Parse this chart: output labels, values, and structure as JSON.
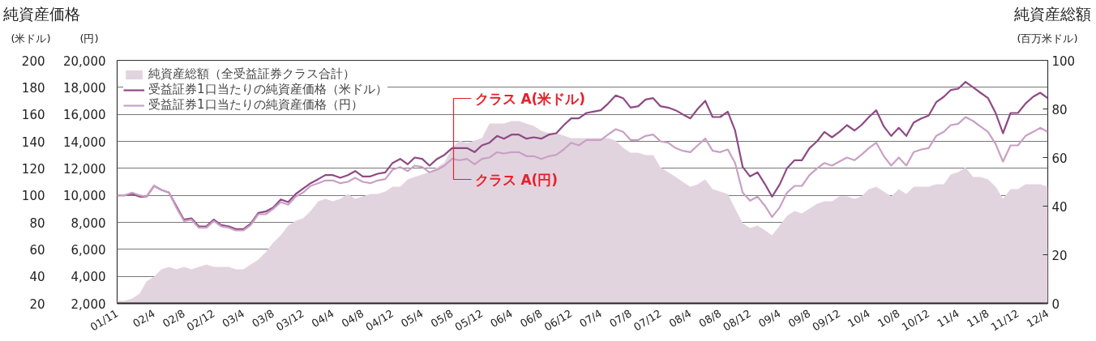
{
  "chart_data": {
    "type": "line",
    "title": "純資産価格",
    "ylabel": "(米ドル)",
    "y2label": "(円)",
    "y3label": "(百万米ドル)",
    "annotations": [
      "純資産総額",
      "クラス A(米ドル)",
      "クラス A(円)"
    ],
    "x": [
      "2001-11",
      "2001-12",
      "2002-01",
      "2002-02",
      "2002-03",
      "2002-04",
      "2002-05",
      "2002-06",
      "2002-07",
      "2002-08",
      "2002-09",
      "2002-10",
      "2002-11",
      "2002-12",
      "2003-01",
      "2003-02",
      "2003-03",
      "2003-04",
      "2003-05",
      "2003-06",
      "2003-07",
      "2003-08",
      "2003-09",
      "2003-10",
      "2003-11",
      "2003-12",
      "2004-01",
      "2004-02",
      "2004-03",
      "2004-04",
      "2004-05",
      "2004-06",
      "2004-07",
      "2004-08",
      "2004-09",
      "2004-10",
      "2004-11",
      "2004-12",
      "2005-01",
      "2005-02",
      "2005-03",
      "2005-04",
      "2005-05",
      "2005-06",
      "2005-07",
      "2005-08",
      "2005-09",
      "2005-10",
      "2005-11",
      "2005-12",
      "2006-01",
      "2006-02",
      "2006-03",
      "2006-04",
      "2006-05",
      "2006-06",
      "2006-07",
      "2006-08",
      "2006-09",
      "2006-10",
      "2006-11",
      "2006-12",
      "2007-01",
      "2007-02",
      "2007-03",
      "2007-04",
      "2007-05",
      "2007-06",
      "2007-07",
      "2007-08",
      "2007-09",
      "2007-10",
      "2007-11",
      "2007-12",
      "2008-01",
      "2008-02",
      "2008-03",
      "2008-04",
      "2008-05",
      "2008-06",
      "2008-07",
      "2008-08",
      "2008-09",
      "2008-10",
      "2008-11",
      "2008-12",
      "2009-01",
      "2009-02",
      "2009-03",
      "2009-04",
      "2009-05",
      "2009-06",
      "2009-07",
      "2009-08",
      "2009-09",
      "2009-10",
      "2009-11",
      "2009-12",
      "2010-01",
      "2010-02",
      "2010-03",
      "2010-04",
      "2010-05",
      "2010-06",
      "2010-07",
      "2010-08",
      "2010-09",
      "2010-10",
      "2010-11",
      "2010-12",
      "2011-01",
      "2011-02",
      "2011-03",
      "2011-04",
      "2011-05",
      "2011-06",
      "2011-07",
      "2011-08",
      "2011-09",
      "2011-10",
      "2011-11",
      "2011-12",
      "2012-01",
      "2012-02",
      "2012-03",
      "2012-04"
    ],
    "xlim": [
      "2001-11",
      "2012-04"
    ],
    "xticks": [
      {
        "value": "2001-11",
        "label": "01/11"
      },
      {
        "value": "2002-04",
        "label": "02/4"
      },
      {
        "value": "2002-08",
        "label": "02/8"
      },
      {
        "value": "2002-12",
        "label": "02/12"
      },
      {
        "value": "2003-04",
        "label": "03/4"
      },
      {
        "value": "2003-08",
        "label": "03/8"
      },
      {
        "value": "2003-12",
        "label": "03/12"
      },
      {
        "value": "2004-04",
        "label": "04/4"
      },
      {
        "value": "2004-08",
        "label": "04/8"
      },
      {
        "value": "2004-12",
        "label": "04/12"
      },
      {
        "value": "2005-04",
        "label": "05/4"
      },
      {
        "value": "2005-08",
        "label": "05/8"
      },
      {
        "value": "2005-12",
        "label": "05/12"
      },
      {
        "value": "2006-04",
        "label": "06/4"
      },
      {
        "value": "2006-08",
        "label": "06/8"
      },
      {
        "value": "2006-12",
        "label": "06/12"
      },
      {
        "value": "2007-04",
        "label": "07/4"
      },
      {
        "value": "2007-08",
        "label": "07/8"
      },
      {
        "value": "2007-12",
        "label": "07/12"
      },
      {
        "value": "2008-04",
        "label": "08/4"
      },
      {
        "value": "2008-08",
        "label": "08/8"
      },
      {
        "value": "2008-12",
        "label": "08/12"
      },
      {
        "value": "2009-04",
        "label": "09/4"
      },
      {
        "value": "2009-08",
        "label": "09/8"
      },
      {
        "value": "2009-12",
        "label": "09/12"
      },
      {
        "value": "2010-04",
        "label": "10/4"
      },
      {
        "value": "2010-08",
        "label": "10/8"
      },
      {
        "value": "2010-12",
        "label": "10/12"
      },
      {
        "value": "2011-04",
        "label": "11/4"
      },
      {
        "value": "2011-08",
        "label": "11/8"
      },
      {
        "value": "2011-12",
        "label": "11/12"
      },
      {
        "value": "2012-04",
        "label": "12/4"
      }
    ],
    "ylim": [
      20,
      200
    ],
    "yticks": [
      20,
      40,
      60,
      80,
      100,
      120,
      140,
      160,
      180,
      200
    ],
    "y2lim": [
      2000,
      20000
    ],
    "y2ticks": [
      {
        "value": 2000,
        "label": "2,000"
      },
      {
        "value": 4000,
        "label": "4,000"
      },
      {
        "value": 6000,
        "label": "6,000"
      },
      {
        "value": 8000,
        "label": "8,000"
      },
      {
        "value": 10000,
        "label": "10,000"
      },
      {
        "value": 12000,
        "label": "12,000"
      },
      {
        "value": 14000,
        "label": "14,000"
      },
      {
        "value": 16000,
        "label": "16,000"
      },
      {
        "value": 18000,
        "label": "18,000"
      },
      {
        "value": 20000,
        "label": "20,000"
      }
    ],
    "y3lim": [
      0,
      100
    ],
    "y3ticks": [
      0,
      20,
      40,
      60,
      80,
      100
    ],
    "grid": "y",
    "legend": "top left",
    "series": [
      {
        "name": "純資産総額（全受益証券クラス合計）",
        "type": "area",
        "axis": "y3",
        "color": "#e2d4df",
        "values": [
          1,
          1,
          2,
          4,
          9,
          11,
          14,
          15,
          14,
          15,
          14,
          15,
          16,
          15,
          15,
          15,
          14,
          14,
          16,
          18,
          21,
          25,
          28,
          32,
          34,
          35,
          38,
          42,
          43,
          42,
          43,
          45,
          43,
          44,
          45,
          45,
          46,
          48,
          48,
          51,
          52,
          53,
          54,
          56,
          58,
          64,
          67,
          66,
          67,
          68,
          74,
          74,
          74,
          75,
          75,
          74,
          73,
          71,
          70,
          70,
          69,
          68,
          68,
          68,
          68,
          68,
          68,
          67,
          64,
          62,
          62,
          61,
          61,
          56,
          54,
          52,
          50,
          48,
          49,
          51,
          47,
          46,
          45,
          39,
          33,
          31,
          32,
          30,
          28,
          32,
          36,
          38,
          37,
          39,
          41,
          42,
          42,
          44,
          44,
          43,
          44,
          47,
          48,
          46,
          44,
          47,
          45,
          48,
          48,
          48,
          49,
          49,
          53,
          54,
          56,
          52,
          52,
          51,
          48,
          43,
          47,
          47,
          49,
          49,
          49,
          48
        ]
      },
      {
        "name": "受益証券1口当たりの純資産価格（米ドル）",
        "axis": "y",
        "color": "#8e4a85",
        "values": [
          100,
          100,
          101,
          99,
          99,
          107,
          104,
          102,
          92,
          82,
          83,
          77,
          77,
          82,
          78,
          77,
          75,
          75,
          79,
          87,
          88,
          91,
          97,
          95,
          101,
          105,
          109,
          112,
          115,
          115,
          113,
          115,
          118,
          114,
          114,
          116,
          117,
          124,
          127,
          123,
          128,
          127,
          122,
          127,
          130,
          135,
          135,
          135,
          132,
          137,
          139,
          144,
          142,
          145,
          145,
          142,
          143,
          142,
          145,
          146,
          152,
          157,
          157,
          161,
          162,
          163,
          168,
          174,
          172,
          165,
          166,
          171,
          172,
          166,
          165,
          163,
          160,
          157,
          164,
          170,
          158,
          158,
          162,
          148,
          121,
          114,
          117,
          108,
          99,
          108,
          120,
          126,
          126,
          135,
          140,
          147,
          143,
          147,
          152,
          148,
          152,
          158,
          163,
          151,
          144,
          150,
          144,
          154,
          157,
          159,
          169,
          173,
          178,
          179,
          184,
          180,
          176,
          172,
          161,
          146,
          161,
          161,
          168,
          173,
          176,
          172
        ]
      },
      {
        "name": "受益証券1口当たりの純資産価格（円）",
        "axis": "y2",
        "color": "#c9a0c4",
        "values": [
          10000,
          10000,
          10200,
          10000,
          9900,
          10700,
          10400,
          10200,
          9100,
          8100,
          8200,
          7600,
          7600,
          8100,
          7700,
          7600,
          7400,
          7400,
          7800,
          8600,
          8600,
          9000,
          9500,
          9300,
          9900,
          10200,
          10700,
          10900,
          11100,
          11100,
          10900,
          11000,
          11300,
          11000,
          10900,
          11100,
          11200,
          11900,
          12100,
          11800,
          12200,
          12100,
          11700,
          11900,
          12200,
          12700,
          12600,
          12700,
          12300,
          12700,
          12800,
          13200,
          13100,
          13200,
          13200,
          12900,
          12900,
          12700,
          12900,
          13000,
          13400,
          13900,
          13700,
          14100,
          14100,
          14100,
          14500,
          14900,
          14700,
          14100,
          14100,
          14400,
          14500,
          14000,
          13900,
          13500,
          13300,
          13200,
          13700,
          14200,
          13300,
          13200,
          13400,
          12400,
          10200,
          9600,
          9900,
          9200,
          8400,
          9100,
          10200,
          10700,
          10700,
          11500,
          12000,
          12400,
          12200,
          12500,
          12800,
          12600,
          13000,
          13500,
          13900,
          12900,
          12200,
          12800,
          12200,
          13200,
          13400,
          13500,
          14400,
          14700,
          15200,
          15300,
          15800,
          15500,
          15100,
          14700,
          13800,
          12500,
          13700,
          13700,
          14400,
          14700,
          15000,
          14700
        ]
      }
    ]
  }
}
